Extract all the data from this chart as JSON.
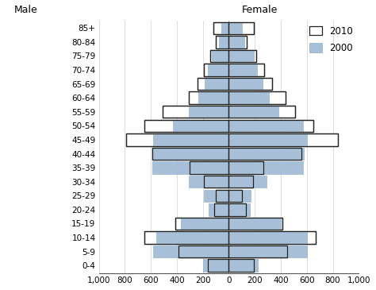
{
  "age_groups": [
    "85+",
    "80-84",
    "75-79",
    "70-74",
    "65-69",
    "60-64",
    "55-59",
    "50-54",
    "45-49",
    "40-44",
    "35-39",
    "30-34",
    "25-29",
    "20-24",
    "15-19",
    "10-14",
    "5-9",
    "0-4"
  ],
  "male_2000": [
    55,
    75,
    130,
    160,
    185,
    235,
    310,
    430,
    580,
    590,
    590,
    310,
    195,
    155,
    370,
    560,
    580,
    200
  ],
  "female_2000": [
    100,
    120,
    190,
    215,
    260,
    310,
    380,
    570,
    600,
    575,
    570,
    290,
    170,
    160,
    400,
    600,
    600,
    220
  ],
  "male_2010": [
    120,
    100,
    145,
    190,
    240,
    310,
    510,
    650,
    790,
    590,
    300,
    190,
    100,
    110,
    410,
    650,
    390,
    160
  ],
  "female_2010": [
    190,
    140,
    210,
    270,
    330,
    435,
    510,
    650,
    840,
    560,
    265,
    185,
    100,
    130,
    410,
    670,
    450,
    190
  ],
  "color_2000_fill": "#a8bfd8",
  "color_2000_edge": "#8aaac8",
  "color_2010_edge": "#222222",
  "xlim": 1000,
  "title_male": "Male",
  "title_female": "Female",
  "legend_2010": "2010",
  "legend_2000": "2000",
  "xtick_vals": [
    -1000,
    -800,
    -600,
    -400,
    -200,
    0,
    200,
    400,
    600,
    800,
    1000
  ],
  "xtick_labels": [
    "1,000",
    "800",
    "600",
    "400",
    "200",
    "0",
    "200",
    "400",
    "600",
    "800",
    "1,000"
  ]
}
